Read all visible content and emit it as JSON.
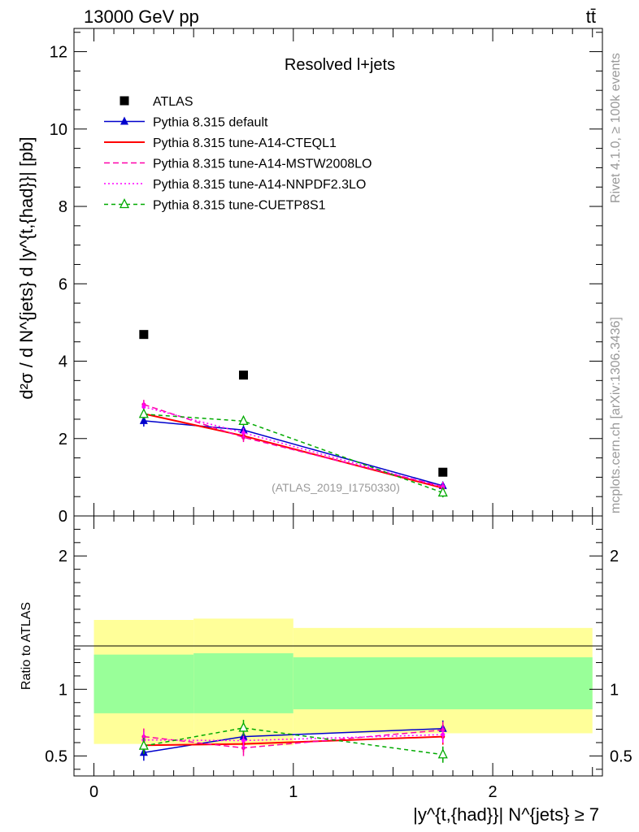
{
  "header": {
    "beam": "13000 GeV pp",
    "process": "tt̄",
    "rivet": "Rivet 4.1.0, ≥ 100k events",
    "mcplots": "mcplots.cern.ch [arXiv:1306.3436]",
    "analysis": "(ATLAS_2019_I1750330)"
  },
  "chart_data": [
    {
      "type": "scatter",
      "panel": "main",
      "title": "Resolved l+jets",
      "ylabel": "d²σ / d N^{jets} d |y^{t,{had}}| [pb]",
      "xlim": [
        -0.1,
        2.55
      ],
      "ylim": [
        0,
        12.6
      ],
      "yticks": [
        0,
        2,
        4,
        6,
        8,
        10,
        12
      ],
      "x": [
        0.25,
        0.75,
        1.75
      ],
      "series": [
        {
          "name": "ATLAS",
          "style": "data",
          "color": "#000000",
          "values": [
            4.69,
            3.64,
            1.13
          ]
        },
        {
          "name": "Pythia 8.315 default",
          "style": "solid-triangle",
          "color": "#0000cc",
          "values": [
            2.46,
            2.22,
            0.78
          ],
          "errors": [
            0.15,
            0.1,
            0.05
          ]
        },
        {
          "name": "Pythia 8.315 tune-A14-CTEQL1",
          "style": "solid",
          "color": "#ff0000",
          "values": [
            2.64,
            2.07,
            0.72
          ]
        },
        {
          "name": "Pythia 8.315 tune-A14-MSTW2008LO",
          "style": "dashed",
          "color": "#ff00aa",
          "values": [
            2.88,
            2.03,
            0.76
          ]
        },
        {
          "name": "Pythia 8.315 tune-A14-NNPDF2.3LO",
          "style": "dotted",
          "color": "#ff00ff",
          "values": [
            2.82,
            2.15,
            0.74
          ]
        },
        {
          "name": "Pythia 8.315 tune-CUETP8S1",
          "style": "dashed-open-triangle",
          "color": "#00aa00",
          "values": [
            2.63,
            2.45,
            0.6
          ]
        }
      ]
    },
    {
      "type": "line",
      "panel": "ratio",
      "ylabel": "Ratio to ATLAS",
      "xlabel": "|y^{t,{had}}| N^{jets} ≥ 7",
      "xlim": [
        -0.1,
        2.55
      ],
      "ylim": [
        0.35,
        2.3
      ],
      "yticks": [
        0.5,
        1,
        2
      ],
      "xticks": [
        0,
        1,
        2
      ],
      "bins": [
        [
          0,
          0.5
        ],
        [
          0.5,
          1.0
        ],
        [
          1.0,
          2.5
        ]
      ],
      "band_outer": [
        [
          0.59,
          1.52
        ],
        [
          0.58,
          1.53
        ],
        [
          0.67,
          1.46
        ]
      ],
      "band_inner": [
        [
          0.82,
          1.26
        ],
        [
          0.82,
          1.27
        ],
        [
          0.85,
          1.24
        ]
      ],
      "x": [
        0.25,
        0.75,
        1.75
      ],
      "series": [
        {
          "name": "Pythia 8.315 default",
          "values": [
            0.525,
            0.645,
            0.705
          ]
        },
        {
          "name": "Pythia 8.315 tune-A14-CTEQL1",
          "values": [
            0.58,
            0.59,
            0.645
          ]
        },
        {
          "name": "Pythia 8.315 tune-A14-MSTW2008LO",
          "values": [
            0.645,
            0.56,
            0.695
          ]
        },
        {
          "name": "Pythia 8.315 tune-A14-NNPDF2.3LO",
          "values": [
            0.62,
            0.615,
            0.66
          ]
        },
        {
          "name": "Pythia 8.315 tune-CUETP8S1",
          "values": [
            0.575,
            0.71,
            0.51
          ]
        }
      ]
    }
  ]
}
